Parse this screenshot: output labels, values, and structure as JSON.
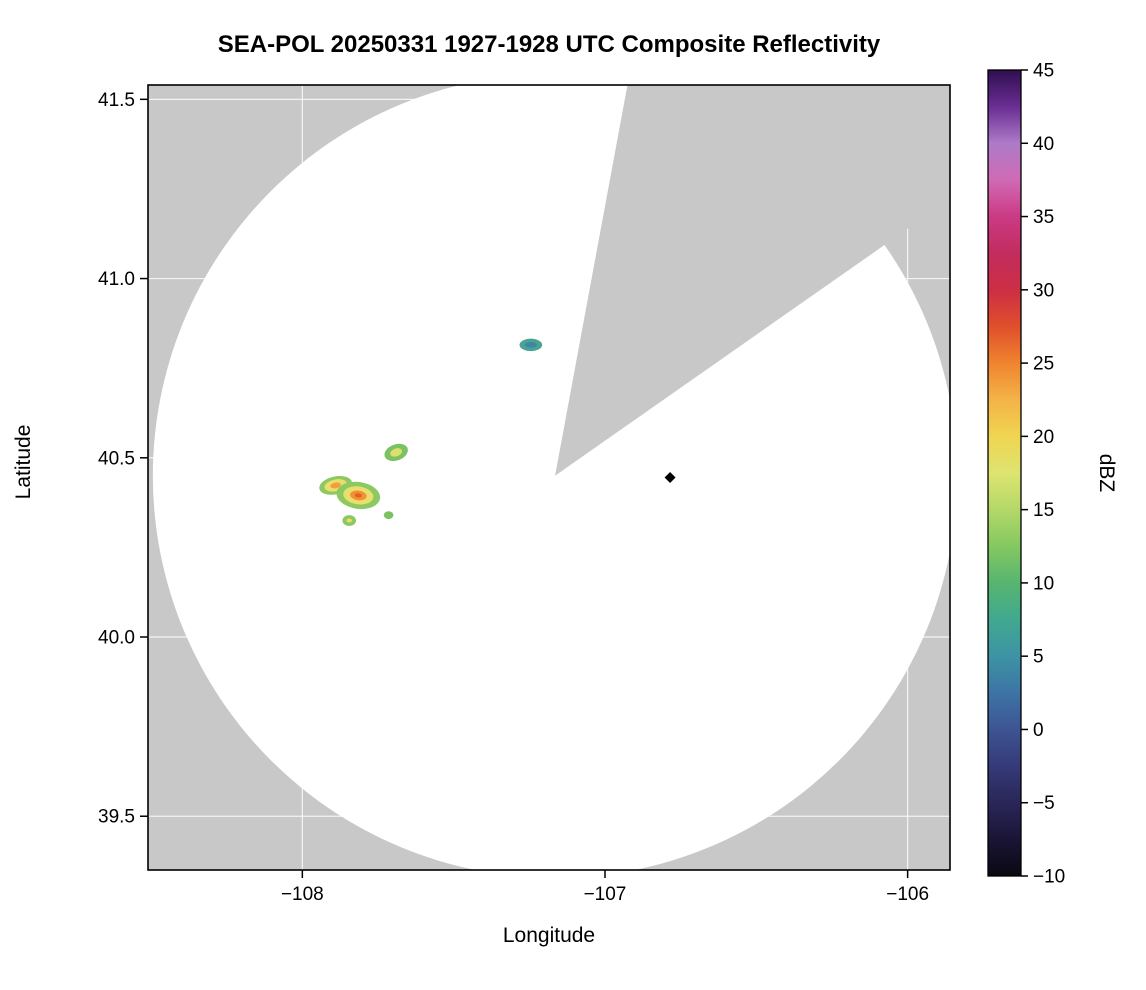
{
  "chart_data": {
    "type": "heatmap",
    "subtype": "radar-ppi-composite-reflectivity",
    "title": "SEA-POL 20250331 1927-1928 UTC Composite Reflectivity",
    "xlabel": "Longitude",
    "ylabel": "Latitude",
    "xlim": [
      -108.51,
      -105.86
    ],
    "ylim": [
      39.35,
      41.54
    ],
    "xticks": [
      -108,
      -107,
      -106
    ],
    "xtick_labels": [
      "−108",
      "−107",
      "−106"
    ],
    "yticks": [
      39.5,
      40.0,
      40.5,
      41.0,
      41.5
    ],
    "ytick_labels": [
      "39.5",
      "40.0",
      "40.5",
      "41.0",
      "41.5"
    ],
    "grid": true,
    "no_data_color": "#c8c8c8",
    "clear_air_color": "#ffffff",
    "radar": {
      "center_lon": -107.165,
      "center_lat": 40.45,
      "range_radius_lon_deg": 1.329,
      "range_radius_lat_deg": 1.122,
      "blocked_sector_azimuth_deg": [
        10.5,
        55
      ]
    },
    "echoes": [
      {
        "name": "cell-north",
        "lon": -107.245,
        "lat": 40.815,
        "rotation_deg": 0,
        "max_dbz": 8,
        "layers": [
          {
            "color": "#4aa392",
            "w_deg": 0.075,
            "h_deg": 0.035
          },
          {
            "color": "#3c86a6",
            "w_deg": 0.04,
            "h_deg": 0.016
          }
        ]
      },
      {
        "name": "cell-east-of-cluster",
        "lon": -107.69,
        "lat": 40.515,
        "rotation_deg": -20,
        "max_dbz": 16,
        "layers": [
          {
            "color": "#7cc263",
            "w_deg": 0.08,
            "h_deg": 0.045
          },
          {
            "color": "#dce06e",
            "w_deg": 0.04,
            "h_deg": 0.022
          }
        ]
      },
      {
        "name": "cluster-west",
        "lon": -107.89,
        "lat": 40.423,
        "rotation_deg": -12,
        "max_dbz": 24,
        "layers": [
          {
            "color": "#8cc961",
            "w_deg": 0.11,
            "h_deg": 0.05
          },
          {
            "color": "#eade6f",
            "w_deg": 0.075,
            "h_deg": 0.033
          },
          {
            "color": "#f0a03a",
            "w_deg": 0.035,
            "h_deg": 0.016
          }
        ]
      },
      {
        "name": "cluster-main",
        "lon": -107.815,
        "lat": 40.395,
        "rotation_deg": 8,
        "max_dbz": 27,
        "layers": [
          {
            "color": "#8cc961",
            "w_deg": 0.145,
            "h_deg": 0.075
          },
          {
            "color": "#eade6f",
            "w_deg": 0.1,
            "h_deg": 0.05
          },
          {
            "color": "#f0922f",
            "w_deg": 0.055,
            "h_deg": 0.027
          },
          {
            "color": "#e4602a",
            "w_deg": 0.024,
            "h_deg": 0.012
          }
        ]
      },
      {
        "name": "cluster-south-dot",
        "lon": -107.845,
        "lat": 40.325,
        "rotation_deg": 0,
        "max_dbz": 15,
        "layers": [
          {
            "color": "#8cc961",
            "w_deg": 0.045,
            "h_deg": 0.03
          },
          {
            "color": "#eade6f",
            "w_deg": 0.018,
            "h_deg": 0.011
          }
        ]
      },
      {
        "name": "cluster-se-dot",
        "lon": -107.715,
        "lat": 40.34,
        "rotation_deg": 0,
        "max_dbz": 12,
        "layers": [
          {
            "color": "#7cc263",
            "w_deg": 0.032,
            "h_deg": 0.022
          }
        ]
      }
    ],
    "marker": {
      "lon": -106.785,
      "lat": 40.445,
      "shape": "diamond",
      "color": "#000000"
    },
    "colorbar": {
      "label": "dBZ",
      "min": -10,
      "max": 45,
      "ticks": [
        45,
        40,
        35,
        30,
        25,
        20,
        15,
        10,
        5,
        0,
        -5,
        -10
      ],
      "tick_labels": [
        "45",
        "40",
        "35",
        "30",
        "25",
        "20",
        "15",
        "10",
        "5",
        "0",
        "−5",
        "−10"
      ],
      "stops": [
        {
          "value": 45,
          "color": "#2f0f4f"
        },
        {
          "value": 42.5,
          "color": "#6a2d93"
        },
        {
          "value": 40,
          "color": "#ad7bc8"
        },
        {
          "value": 37.5,
          "color": "#d06ab4"
        },
        {
          "value": 35,
          "color": "#cb3a84"
        },
        {
          "value": 32.5,
          "color": "#c22c5e"
        },
        {
          "value": 30,
          "color": "#cc2e44"
        },
        {
          "value": 27.5,
          "color": "#e04f2c"
        },
        {
          "value": 25,
          "color": "#ef842f"
        },
        {
          "value": 22.5,
          "color": "#f4b348"
        },
        {
          "value": 20,
          "color": "#f0d551"
        },
        {
          "value": 17.5,
          "color": "#dde470"
        },
        {
          "value": 15,
          "color": "#b4d868"
        },
        {
          "value": 12.5,
          "color": "#84c861"
        },
        {
          "value": 10,
          "color": "#57b56f"
        },
        {
          "value": 7.5,
          "color": "#40a98f"
        },
        {
          "value": 5,
          "color": "#3d93a4"
        },
        {
          "value": 2.5,
          "color": "#3d74a6"
        },
        {
          "value": 0,
          "color": "#3d5493"
        },
        {
          "value": -2.5,
          "color": "#353a78"
        },
        {
          "value": -5,
          "color": "#2a2658"
        },
        {
          "value": -7.5,
          "color": "#1a1536"
        },
        {
          "value": -10,
          "color": "#0a0910"
        }
      ]
    }
  }
}
